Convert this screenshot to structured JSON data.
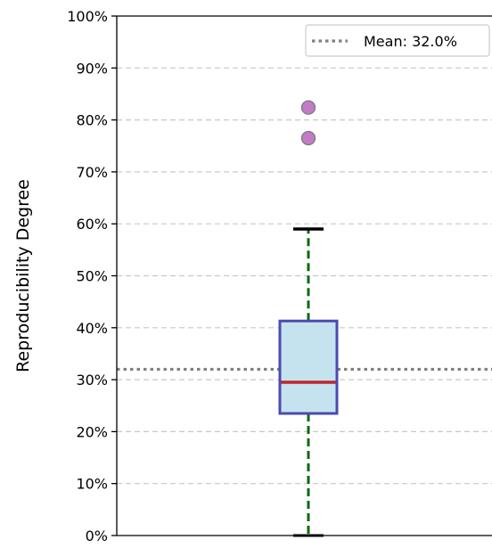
{
  "chart_data": {
    "type": "box",
    "ylabel": "Reproducibility Degree",
    "ylim": [
      0,
      100
    ],
    "y_ticks": [
      0,
      10,
      20,
      30,
      40,
      50,
      60,
      70,
      80,
      90,
      100
    ],
    "y_tick_labels": [
      "0%",
      "10%",
      "20%",
      "30%",
      "40%",
      "50%",
      "60%",
      "70%",
      "80%",
      "90%",
      "100%"
    ],
    "grid": true,
    "legend_position": "top-right",
    "box": {
      "min": 0,
      "q1": 23.5,
      "median": 29.5,
      "q3": 41.3,
      "max": 59.0,
      "outliers": [
        76.5,
        82.4
      ]
    },
    "mean": 32.0,
    "mean_label": "Mean: 32.0%",
    "colors": {
      "box_fill": "#c5e3ee",
      "box_edge": "#4b4baf",
      "median": "#c0262c",
      "whisker": "#0b6b0b",
      "cap": "#000000",
      "outlier": "#c47bc6",
      "mean_line": "#808080",
      "grid": "#c8c8c8"
    }
  }
}
